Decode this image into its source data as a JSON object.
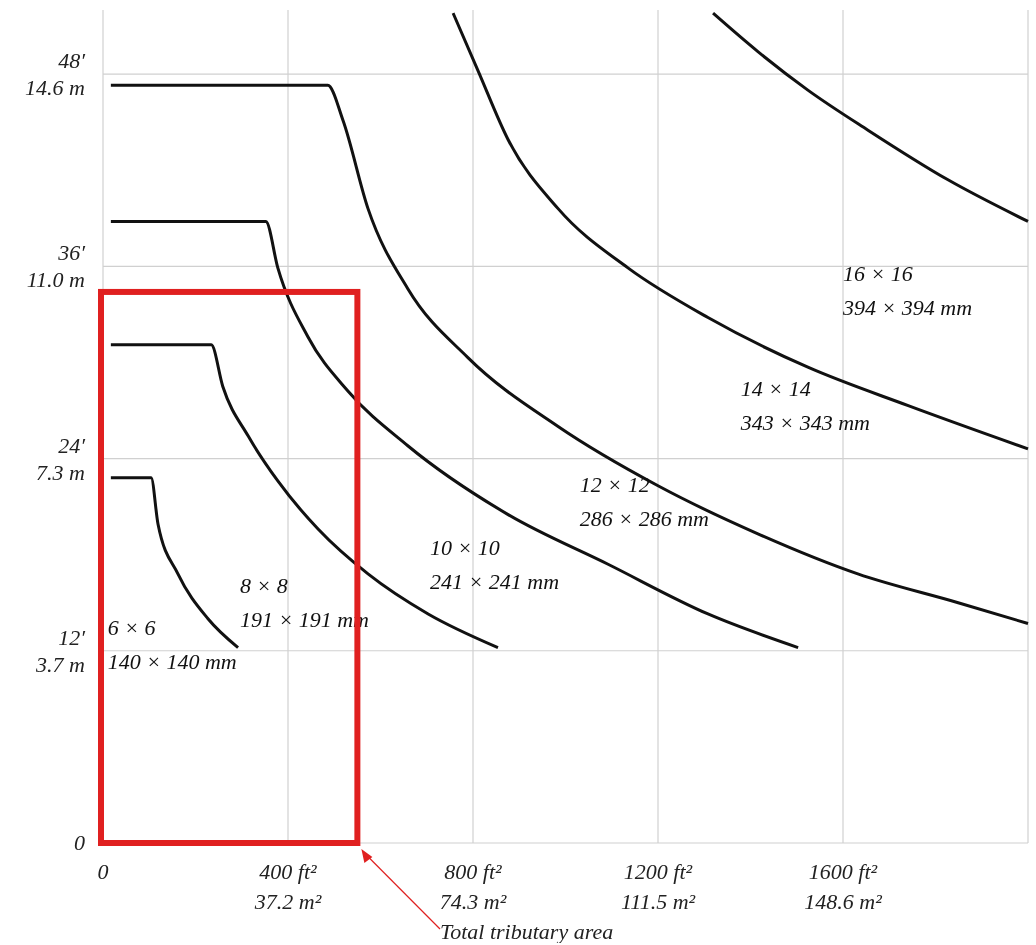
{
  "chart_data": {
    "type": "line",
    "xlabel": "Total tributary area",
    "xlim": [
      0,
      2000
    ],
    "ylim": [
      0,
      52
    ],
    "xticks": [
      0,
      {
        "value": 400,
        "label": "400 ft²"
      },
      {
        "value": 800,
        "label": "800 ft²"
      },
      {
        "value": 1200,
        "label": "1200 ft²"
      },
      {
        "value": 1600,
        "label": "1600 ft²"
      }
    ],
    "x2lim": [
      0,
      185.8
    ],
    "x2ticks": [
      {
        "value": 37.16,
        "label": "37.2 m²"
      },
      {
        "value": 74.32,
        "label": "74.3 m²"
      },
      {
        "value": 111.48,
        "label": "111.5 m²"
      },
      {
        "value": 148.64,
        "label": "148.6 m²"
      }
    ],
    "yticks": [
      0,
      {
        "value": 12,
        "label": "12′"
      },
      {
        "value": 24,
        "label": "24′"
      },
      {
        "value": 36,
        "label": "36′"
      },
      {
        "value": 48,
        "label": "48′"
      }
    ],
    "y2lim": [
      0,
      15.85
    ],
    "y2ticks": [
      {
        "value": 3.658,
        "label": "3.7 m"
      },
      {
        "value": 7.315,
        "label": "7.3 m"
      },
      {
        "value": 10.973,
        "label": "11.0 m"
      },
      {
        "value": 14.63,
        "label": "14.6 m"
      }
    ],
    "grid": true,
    "marker": "none",
    "line_style": "solid",
    "series": [
      {
        "name": "6 × 6\n140 × 140 mm",
        "color": "#111111",
        "x": [
          17,
          104,
          119,
          162,
          227,
          292
        ],
        "values": [
          22.8,
          22.8,
          19.9,
          16.8,
          14.0,
          12.2
        ]
      },
      {
        "name": "8 × 8\n191 × 191 mm",
        "color": "#111111",
        "x": [
          17,
          234,
          259,
          314,
          378,
          465,
          573,
          703,
          854
        ],
        "values": [
          31.1,
          31.1,
          28.5,
          25.4,
          22.6,
          19.6,
          16.8,
          14.3,
          12.2
        ]
      },
      {
        "name": "10 × 10\n241 × 241 mm",
        "color": "#111111",
        "x": [
          17,
          352,
          378,
          443,
          530,
          659,
          876,
          1092,
          1308,
          1503
        ],
        "values": [
          38.8,
          38.8,
          35.9,
          31.6,
          28.2,
          24.8,
          20.5,
          17.4,
          14.3,
          12.2
        ]
      },
      {
        "name": "12 × 12\n286 × 286 mm",
        "color": "#111111",
        "x": [
          17,
          486,
          519,
          573,
          659,
          789,
          984,
          1200,
          1416,
          1632,
          1849,
          2000
        ],
        "values": [
          47.3,
          47.3,
          45.1,
          39.6,
          34.6,
          30.3,
          26.0,
          22.3,
          19.3,
          16.8,
          15.0,
          13.7
        ]
      },
      {
        "name": "14 × 14\n343 × 343 mm",
        "color": "#111111",
        "x": [
          757,
          811,
          876,
          984,
          1135,
          1308,
          1524,
          1741,
          2000
        ],
        "values": [
          51.8,
          48.2,
          43.9,
          39.6,
          35.9,
          32.8,
          29.7,
          27.3,
          24.6
        ]
      },
      {
        "name": "16 × 16\n394 × 394 mm",
        "color": "#111111",
        "x": [
          1319,
          1416,
          1524,
          1654,
          1827,
          2000
        ],
        "values": [
          51.8,
          49.4,
          47.0,
          44.5,
          41.4,
          38.8
        ]
      }
    ]
  }
}
